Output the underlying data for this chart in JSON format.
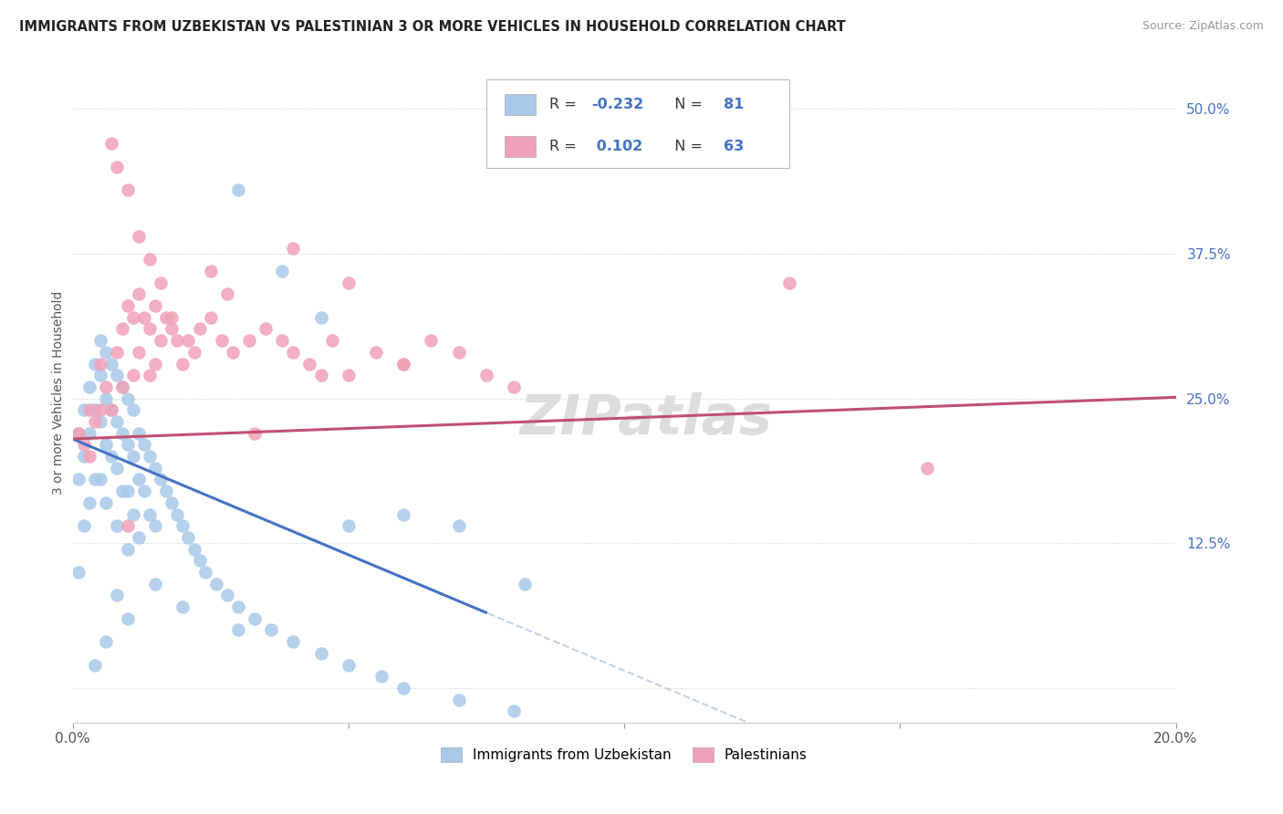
{
  "title": "IMMIGRANTS FROM UZBEKISTAN VS PALESTINIAN 3 OR MORE VEHICLES IN HOUSEHOLD CORRELATION CHART",
  "source": "Source: ZipAtlas.com",
  "ylabel": "3 or more Vehicles in Household",
  "legend_label1": "Immigrants from Uzbekistan",
  "legend_label2": "Palestinians",
  "R1": -0.232,
  "N1": 81,
  "R2": 0.102,
  "N2": 63,
  "color_blue": "#a8c8e8",
  "color_pink": "#f0a0b8",
  "line_blue": "#4472c4",
  "line_pink": "#c05070",
  "line_dash_color": "#b0c8e0",
  "watermark": "ZIPatlas",
  "xmin": 0.0,
  "xmax": 0.2,
  "ymin": -0.03,
  "ymax": 0.54,
  "y_ticks": [
    0.0,
    0.125,
    0.25,
    0.375,
    0.5
  ],
  "y_tick_labels": [
    "",
    "12.5%",
    "25.0%",
    "37.5%",
    "50.0%"
  ],
  "x_ticks": [
    0.0,
    0.05,
    0.1,
    0.15,
    0.2
  ],
  "x_tick_labels": [
    "0.0%",
    "",
    "",
    "",
    "20.0%"
  ],
  "uzbek_x": [
    0.001,
    0.001,
    0.001,
    0.002,
    0.002,
    0.002,
    0.003,
    0.003,
    0.003,
    0.004,
    0.004,
    0.004,
    0.005,
    0.005,
    0.005,
    0.005,
    0.006,
    0.006,
    0.006,
    0.006,
    0.007,
    0.007,
    0.007,
    0.008,
    0.008,
    0.008,
    0.008,
    0.009,
    0.009,
    0.009,
    0.01,
    0.01,
    0.01,
    0.01,
    0.011,
    0.011,
    0.011,
    0.012,
    0.012,
    0.012,
    0.013,
    0.013,
    0.014,
    0.014,
    0.015,
    0.015,
    0.016,
    0.017,
    0.018,
    0.019,
    0.02,
    0.021,
    0.022,
    0.023,
    0.024,
    0.026,
    0.028,
    0.03,
    0.033,
    0.036,
    0.04,
    0.045,
    0.05,
    0.056,
    0.06,
    0.07,
    0.08,
    0.03,
    0.038,
    0.045,
    0.05,
    0.06,
    0.07,
    0.082,
    0.03,
    0.02,
    0.015,
    0.01,
    0.008,
    0.006,
    0.004
  ],
  "uzbek_y": [
    0.22,
    0.18,
    0.1,
    0.24,
    0.2,
    0.14,
    0.26,
    0.22,
    0.16,
    0.28,
    0.24,
    0.18,
    0.3,
    0.27,
    0.23,
    0.18,
    0.29,
    0.25,
    0.21,
    0.16,
    0.28,
    0.24,
    0.2,
    0.27,
    0.23,
    0.19,
    0.14,
    0.26,
    0.22,
    0.17,
    0.25,
    0.21,
    0.17,
    0.12,
    0.24,
    0.2,
    0.15,
    0.22,
    0.18,
    0.13,
    0.21,
    0.17,
    0.2,
    0.15,
    0.19,
    0.14,
    0.18,
    0.17,
    0.16,
    0.15,
    0.14,
    0.13,
    0.12,
    0.11,
    0.1,
    0.09,
    0.08,
    0.07,
    0.06,
    0.05,
    0.04,
    0.03,
    0.02,
    0.01,
    0.0,
    -0.01,
    -0.02,
    0.43,
    0.36,
    0.32,
    0.14,
    0.15,
    0.14,
    0.09,
    0.05,
    0.07,
    0.09,
    0.06,
    0.08,
    0.04,
    0.02
  ],
  "palest_x": [
    0.001,
    0.002,
    0.003,
    0.003,
    0.004,
    0.005,
    0.005,
    0.006,
    0.007,
    0.008,
    0.009,
    0.009,
    0.01,
    0.011,
    0.011,
    0.012,
    0.012,
    0.013,
    0.014,
    0.014,
    0.015,
    0.015,
    0.016,
    0.017,
    0.018,
    0.019,
    0.02,
    0.021,
    0.022,
    0.023,
    0.025,
    0.027,
    0.029,
    0.032,
    0.035,
    0.038,
    0.04,
    0.043,
    0.047,
    0.05,
    0.055,
    0.06,
    0.065,
    0.07,
    0.075,
    0.08,
    0.04,
    0.05,
    0.06,
    0.025,
    0.028,
    0.033,
    0.007,
    0.008,
    0.01,
    0.012,
    0.014,
    0.016,
    0.018,
    0.01,
    0.045,
    0.13,
    0.155
  ],
  "palest_y": [
    0.22,
    0.21,
    0.24,
    0.2,
    0.23,
    0.28,
    0.24,
    0.26,
    0.24,
    0.29,
    0.31,
    0.26,
    0.33,
    0.32,
    0.27,
    0.34,
    0.29,
    0.32,
    0.31,
    0.27,
    0.33,
    0.28,
    0.3,
    0.32,
    0.31,
    0.3,
    0.28,
    0.3,
    0.29,
    0.31,
    0.32,
    0.3,
    0.29,
    0.3,
    0.31,
    0.3,
    0.29,
    0.28,
    0.3,
    0.27,
    0.29,
    0.28,
    0.3,
    0.29,
    0.27,
    0.26,
    0.38,
    0.35,
    0.28,
    0.36,
    0.34,
    0.22,
    0.47,
    0.45,
    0.43,
    0.39,
    0.37,
    0.35,
    0.32,
    0.14,
    0.27,
    0.35,
    0.19
  ]
}
